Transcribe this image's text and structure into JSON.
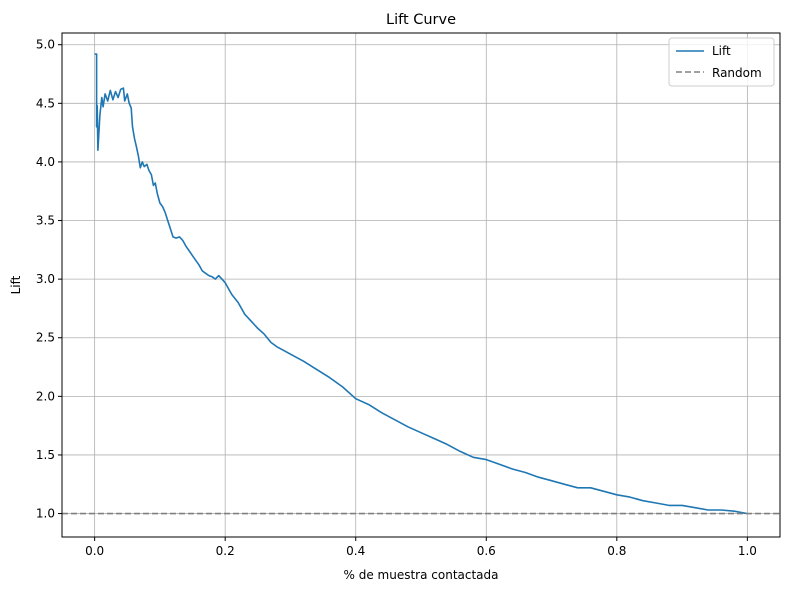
{
  "chart_data": {
    "type": "line",
    "title": "Lift Curve",
    "xlabel": "% de muestra contactada",
    "ylabel": "Lift",
    "xlim": [
      -0.05,
      1.05
    ],
    "ylim": [
      0.8,
      5.1
    ],
    "xticks": [
      "0.0",
      "0.2",
      "0.4",
      "0.6",
      "0.8",
      "1.0"
    ],
    "yticks": [
      "1.0",
      "1.5",
      "2.0",
      "2.5",
      "3.0",
      "3.5",
      "4.0",
      "4.5",
      "5.0"
    ],
    "grid": true,
    "legend_position": "top-right",
    "series": [
      {
        "name": "Lift",
        "color": "#1f77b4",
        "style": "solid",
        "points": [
          [
            0.0,
            4.92
          ],
          [
            0.003,
            4.92
          ],
          [
            0.003,
            4.3
          ],
          [
            0.004,
            4.48
          ],
          [
            0.005,
            4.1
          ],
          [
            0.008,
            4.4
          ],
          [
            0.011,
            4.55
          ],
          [
            0.013,
            4.47
          ],
          [
            0.016,
            4.58
          ],
          [
            0.02,
            4.52
          ],
          [
            0.024,
            4.61
          ],
          [
            0.028,
            4.53
          ],
          [
            0.032,
            4.6
          ],
          [
            0.036,
            4.55
          ],
          [
            0.04,
            4.62
          ],
          [
            0.044,
            4.63
          ],
          [
            0.046,
            4.52
          ],
          [
            0.05,
            4.58
          ],
          [
            0.053,
            4.5
          ],
          [
            0.056,
            4.46
          ],
          [
            0.058,
            4.3
          ],
          [
            0.061,
            4.2
          ],
          [
            0.064,
            4.13
          ],
          [
            0.067,
            4.05
          ],
          [
            0.07,
            3.95
          ],
          [
            0.073,
            4.0
          ],
          [
            0.076,
            3.96
          ],
          [
            0.08,
            3.98
          ],
          [
            0.083,
            3.93
          ],
          [
            0.087,
            3.89
          ],
          [
            0.09,
            3.8
          ],
          [
            0.093,
            3.82
          ],
          [
            0.096,
            3.73
          ],
          [
            0.1,
            3.65
          ],
          [
            0.104,
            3.62
          ],
          [
            0.108,
            3.57
          ],
          [
            0.112,
            3.5
          ],
          [
            0.116,
            3.43
          ],
          [
            0.12,
            3.36
          ],
          [
            0.125,
            3.35
          ],
          [
            0.13,
            3.36
          ],
          [
            0.135,
            3.33
          ],
          [
            0.14,
            3.28
          ],
          [
            0.145,
            3.24
          ],
          [
            0.15,
            3.2
          ],
          [
            0.155,
            3.16
          ],
          [
            0.16,
            3.12
          ],
          [
            0.165,
            3.07
          ],
          [
            0.17,
            3.05
          ],
          [
            0.175,
            3.03
          ],
          [
            0.18,
            3.02
          ],
          [
            0.185,
            3.0
          ],
          [
            0.19,
            3.03
          ],
          [
            0.195,
            3.0
          ],
          [
            0.2,
            2.97
          ],
          [
            0.205,
            2.92
          ],
          [
            0.21,
            2.87
          ],
          [
            0.22,
            2.8
          ],
          [
            0.23,
            2.7
          ],
          [
            0.24,
            2.64
          ],
          [
            0.25,
            2.58
          ],
          [
            0.26,
            2.53
          ],
          [
            0.27,
            2.46
          ],
          [
            0.28,
            2.42
          ],
          [
            0.29,
            2.39
          ],
          [
            0.3,
            2.36
          ],
          [
            0.32,
            2.3
          ],
          [
            0.34,
            2.23
          ],
          [
            0.36,
            2.16
          ],
          [
            0.38,
            2.08
          ],
          [
            0.4,
            1.98
          ],
          [
            0.42,
            1.93
          ],
          [
            0.44,
            1.86
          ],
          [
            0.46,
            1.8
          ],
          [
            0.48,
            1.74
          ],
          [
            0.5,
            1.69
          ],
          [
            0.52,
            1.64
          ],
          [
            0.54,
            1.59
          ],
          [
            0.56,
            1.53
          ],
          [
            0.58,
            1.48
          ],
          [
            0.6,
            1.46
          ],
          [
            0.62,
            1.42
          ],
          [
            0.64,
            1.38
          ],
          [
            0.66,
            1.35
          ],
          [
            0.68,
            1.31
          ],
          [
            0.7,
            1.28
          ],
          [
            0.72,
            1.25
          ],
          [
            0.74,
            1.22
          ],
          [
            0.76,
            1.22
          ],
          [
            0.78,
            1.19
          ],
          [
            0.8,
            1.16
          ],
          [
            0.82,
            1.14
          ],
          [
            0.84,
            1.11
          ],
          [
            0.86,
            1.09
          ],
          [
            0.88,
            1.07
          ],
          [
            0.9,
            1.07
          ],
          [
            0.92,
            1.05
          ],
          [
            0.94,
            1.03
          ],
          [
            0.96,
            1.03
          ],
          [
            0.98,
            1.02
          ],
          [
            1.0,
            1.0
          ]
        ]
      },
      {
        "name": "Random",
        "color": "#808080",
        "style": "dashed",
        "points": [
          [
            -0.05,
            1.0
          ],
          [
            1.05,
            1.0
          ]
        ]
      }
    ]
  }
}
